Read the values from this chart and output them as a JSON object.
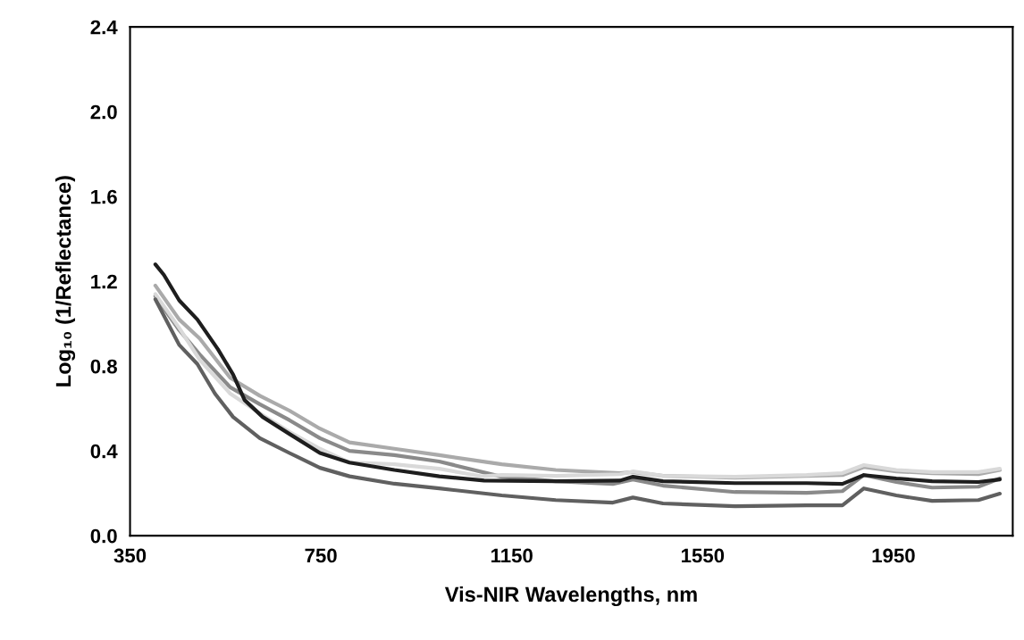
{
  "chart_data": {
    "type": "line",
    "xlabel": "Vis-NIR Wavelengths, nm",
    "ylabel": "Log₁₀ (1/Reflectance)",
    "xlim": [
      350,
      2200
    ],
    "xticks": [
      350,
      750,
      1150,
      1550,
      1950
    ],
    "ylim": [
      0,
      2.4
    ],
    "yticks": [
      {
        "value": 0,
        "label": "0.0"
      },
      {
        "value": 0.4,
        "label": "0.4"
      },
      {
        "value": 0.8,
        "label": "0.8"
      },
      {
        "value": 1.2,
        "label": "1.2"
      },
      {
        "value": 1.6,
        "label": "1.6"
      },
      {
        "value": 2.0,
        "label": "2.0"
      },
      {
        "value": 2.4,
        "label": "2.4"
      }
    ],
    "grid": false,
    "legend": false,
    "marker": "none",
    "line_style": "solid",
    "series": [
      {
        "color": "#aaaaaa",
        "x": [
          403,
          453,
          496,
          560,
          622,
          684,
          748,
          810,
          904,
          998,
          1129,
          1242,
          1377,
          1404,
          1467,
          1618,
          1768,
          1843,
          1888,
          1956,
          2031,
          2128,
          2173
        ],
        "values": [
          1.18,
          1.02,
          0.93,
          0.745,
          0.66,
          0.59,
          0.505,
          0.44,
          0.41,
          0.38,
          0.337,
          0.31,
          0.295,
          0.3,
          0.282,
          0.274,
          0.282,
          0.286,
          0.324,
          0.303,
          0.295,
          0.29,
          0.31
        ]
      },
      {
        "color": "#8a8a8a",
        "x": [
          403,
          453,
          496,
          560,
          622,
          684,
          748,
          810,
          904,
          998,
          1129,
          1242,
          1362,
          1404,
          1467,
          1618,
          1768,
          1843,
          1888,
          1956,
          2031,
          2128,
          2173
        ],
        "values": [
          1.13,
          0.97,
          0.855,
          0.7,
          0.62,
          0.545,
          0.46,
          0.4,
          0.38,
          0.35,
          0.278,
          0.257,
          0.244,
          0.265,
          0.236,
          0.206,
          0.202,
          0.21,
          0.286,
          0.253,
          0.227,
          0.231,
          0.27
        ]
      },
      {
        "color": "#d9d9d9",
        "x": [
          403,
          453,
          496,
          560,
          622,
          684,
          748,
          810,
          904,
          998,
          1086,
          1129,
          1242,
          1377,
          1404,
          1467,
          1618,
          1768,
          1843,
          1888,
          1956,
          2031,
          2128,
          2173
        ],
        "values": [
          1.14,
          0.98,
          0.83,
          0.67,
          0.577,
          0.49,
          0.41,
          0.345,
          0.337,
          0.316,
          0.28,
          0.286,
          0.282,
          0.29,
          0.303,
          0.282,
          0.278,
          0.286,
          0.295,
          0.333,
          0.31,
          0.3,
          0.3,
          0.316
        ]
      },
      {
        "color": "#606060",
        "x": [
          403,
          453,
          491,
          528,
          566,
          622,
          684,
          748,
          810,
          904,
          998,
          1129,
          1242,
          1362,
          1404,
          1467,
          1618,
          1768,
          1843,
          1888,
          1956,
          2031,
          2128,
          2173
        ],
        "values": [
          1.115,
          0.9,
          0.81,
          0.67,
          0.56,
          0.46,
          0.39,
          0.32,
          0.28,
          0.245,
          0.223,
          0.19,
          0.168,
          0.156,
          0.18,
          0.152,
          0.139,
          0.143,
          0.143,
          0.223,
          0.19,
          0.164,
          0.168,
          0.198
        ]
      },
      {
        "color": "#1e1e1e",
        "x": [
          403,
          421,
          453,
          491,
          534,
          566,
          590,
          628,
          684,
          748,
          810,
          904,
          998,
          1092,
          1242,
          1377,
          1404,
          1467,
          1618,
          1768,
          1843,
          1888,
          1956,
          2031,
          2128,
          2173
        ],
        "values": [
          1.28,
          1.23,
          1.11,
          1.02,
          0.88,
          0.76,
          0.64,
          0.56,
          0.48,
          0.39,
          0.345,
          0.31,
          0.28,
          0.26,
          0.257,
          0.26,
          0.278,
          0.257,
          0.248,
          0.248,
          0.244,
          0.286,
          0.27,
          0.257,
          0.253,
          0.265
        ]
      }
    ]
  }
}
